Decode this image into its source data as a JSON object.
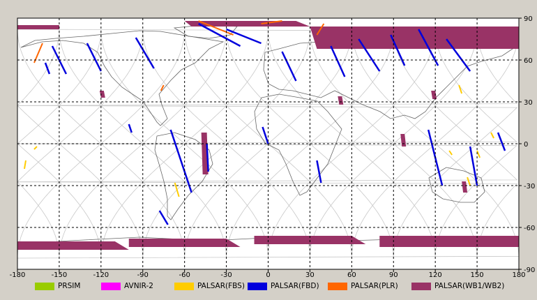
{
  "map": {
    "lon_ticks": [
      "-180",
      "-150",
      "-120",
      "-90",
      "-60",
      "-30",
      "0",
      "30",
      "60",
      "90",
      "120",
      "150",
      "180"
    ],
    "lat_ticks": [
      "90",
      "60",
      "30",
      "0",
      "-30",
      "-60",
      "-90"
    ],
    "extent": {
      "lon": [
        -180,
        180
      ],
      "lat": [
        -90,
        90
      ]
    },
    "grid": "dashed",
    "projection": "equirectangular",
    "colors": {
      "background": "#d4d0c8",
      "map_bg": "#ffffff",
      "coastline": "#666666",
      "orbit_tracks": "#c0c0c0"
    }
  },
  "legend": {
    "items": [
      {
        "label": "PRSIM",
        "color": "#99cc00"
      },
      {
        "label": "AVNIR-2",
        "color": "#ff00ff"
      },
      {
        "label": "PALSAR(FBS)",
        "color": "#ffcc00"
      },
      {
        "label": "PALSAR(FBD)",
        "color": "#0000dd"
      },
      {
        "label": "PALSAR(PLR)",
        "color": "#ff6600"
      },
      {
        "label": "PALSAR(WB1/WB2)",
        "color": "#993366"
      }
    ]
  }
}
